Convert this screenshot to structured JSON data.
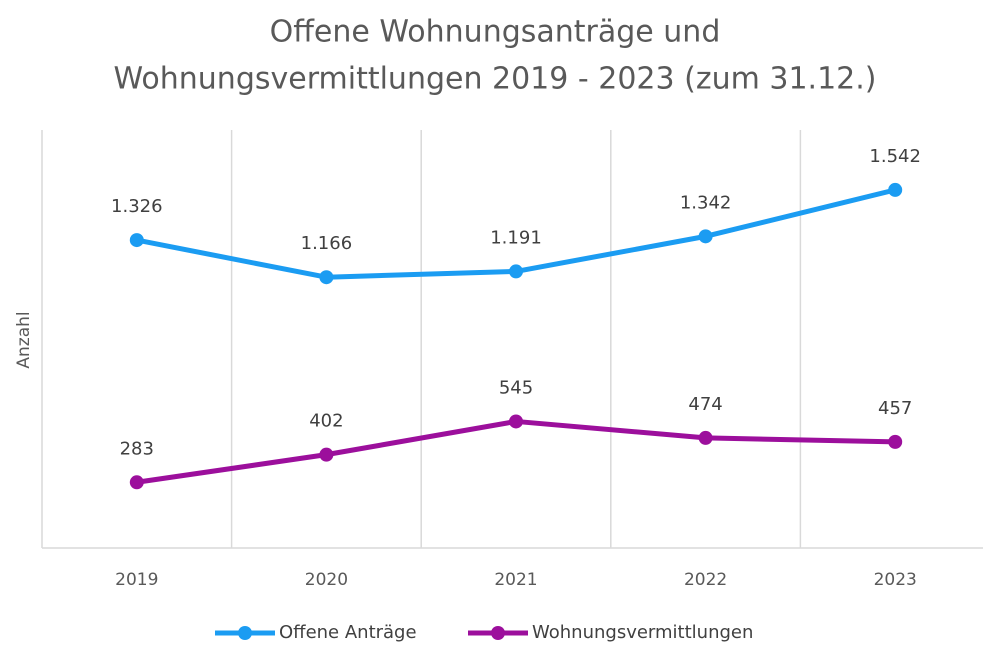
{
  "chart_data": {
    "type": "line",
    "title": [
      "Offene Wohnungsanträge und",
      "Wohnungsvermittlungen 2019 - 2023 (zum 31.12.)"
    ],
    "y_label": "Anzahl",
    "categories": [
      "2019",
      "2020",
      "2021",
      "2022",
      "2023"
    ],
    "series": [
      {
        "name": "Offene Anträge",
        "color": "#1b9cf2",
        "values": [
          1326,
          1166,
          1191,
          1342,
          1542
        ],
        "value_labels": [
          "1.326",
          "1.166",
          "1.191",
          "1.342",
          "1.542"
        ]
      },
      {
        "name": "Wohnungsvermittlungen",
        "color": "#9c0f9c",
        "values": [
          283,
          402,
          545,
          474,
          457
        ],
        "value_labels": [
          "283",
          "402",
          "545",
          "474",
          "457"
        ]
      }
    ],
    "ylim": [
      0,
      1800
    ],
    "grid": true,
    "legend": "bottom"
  }
}
